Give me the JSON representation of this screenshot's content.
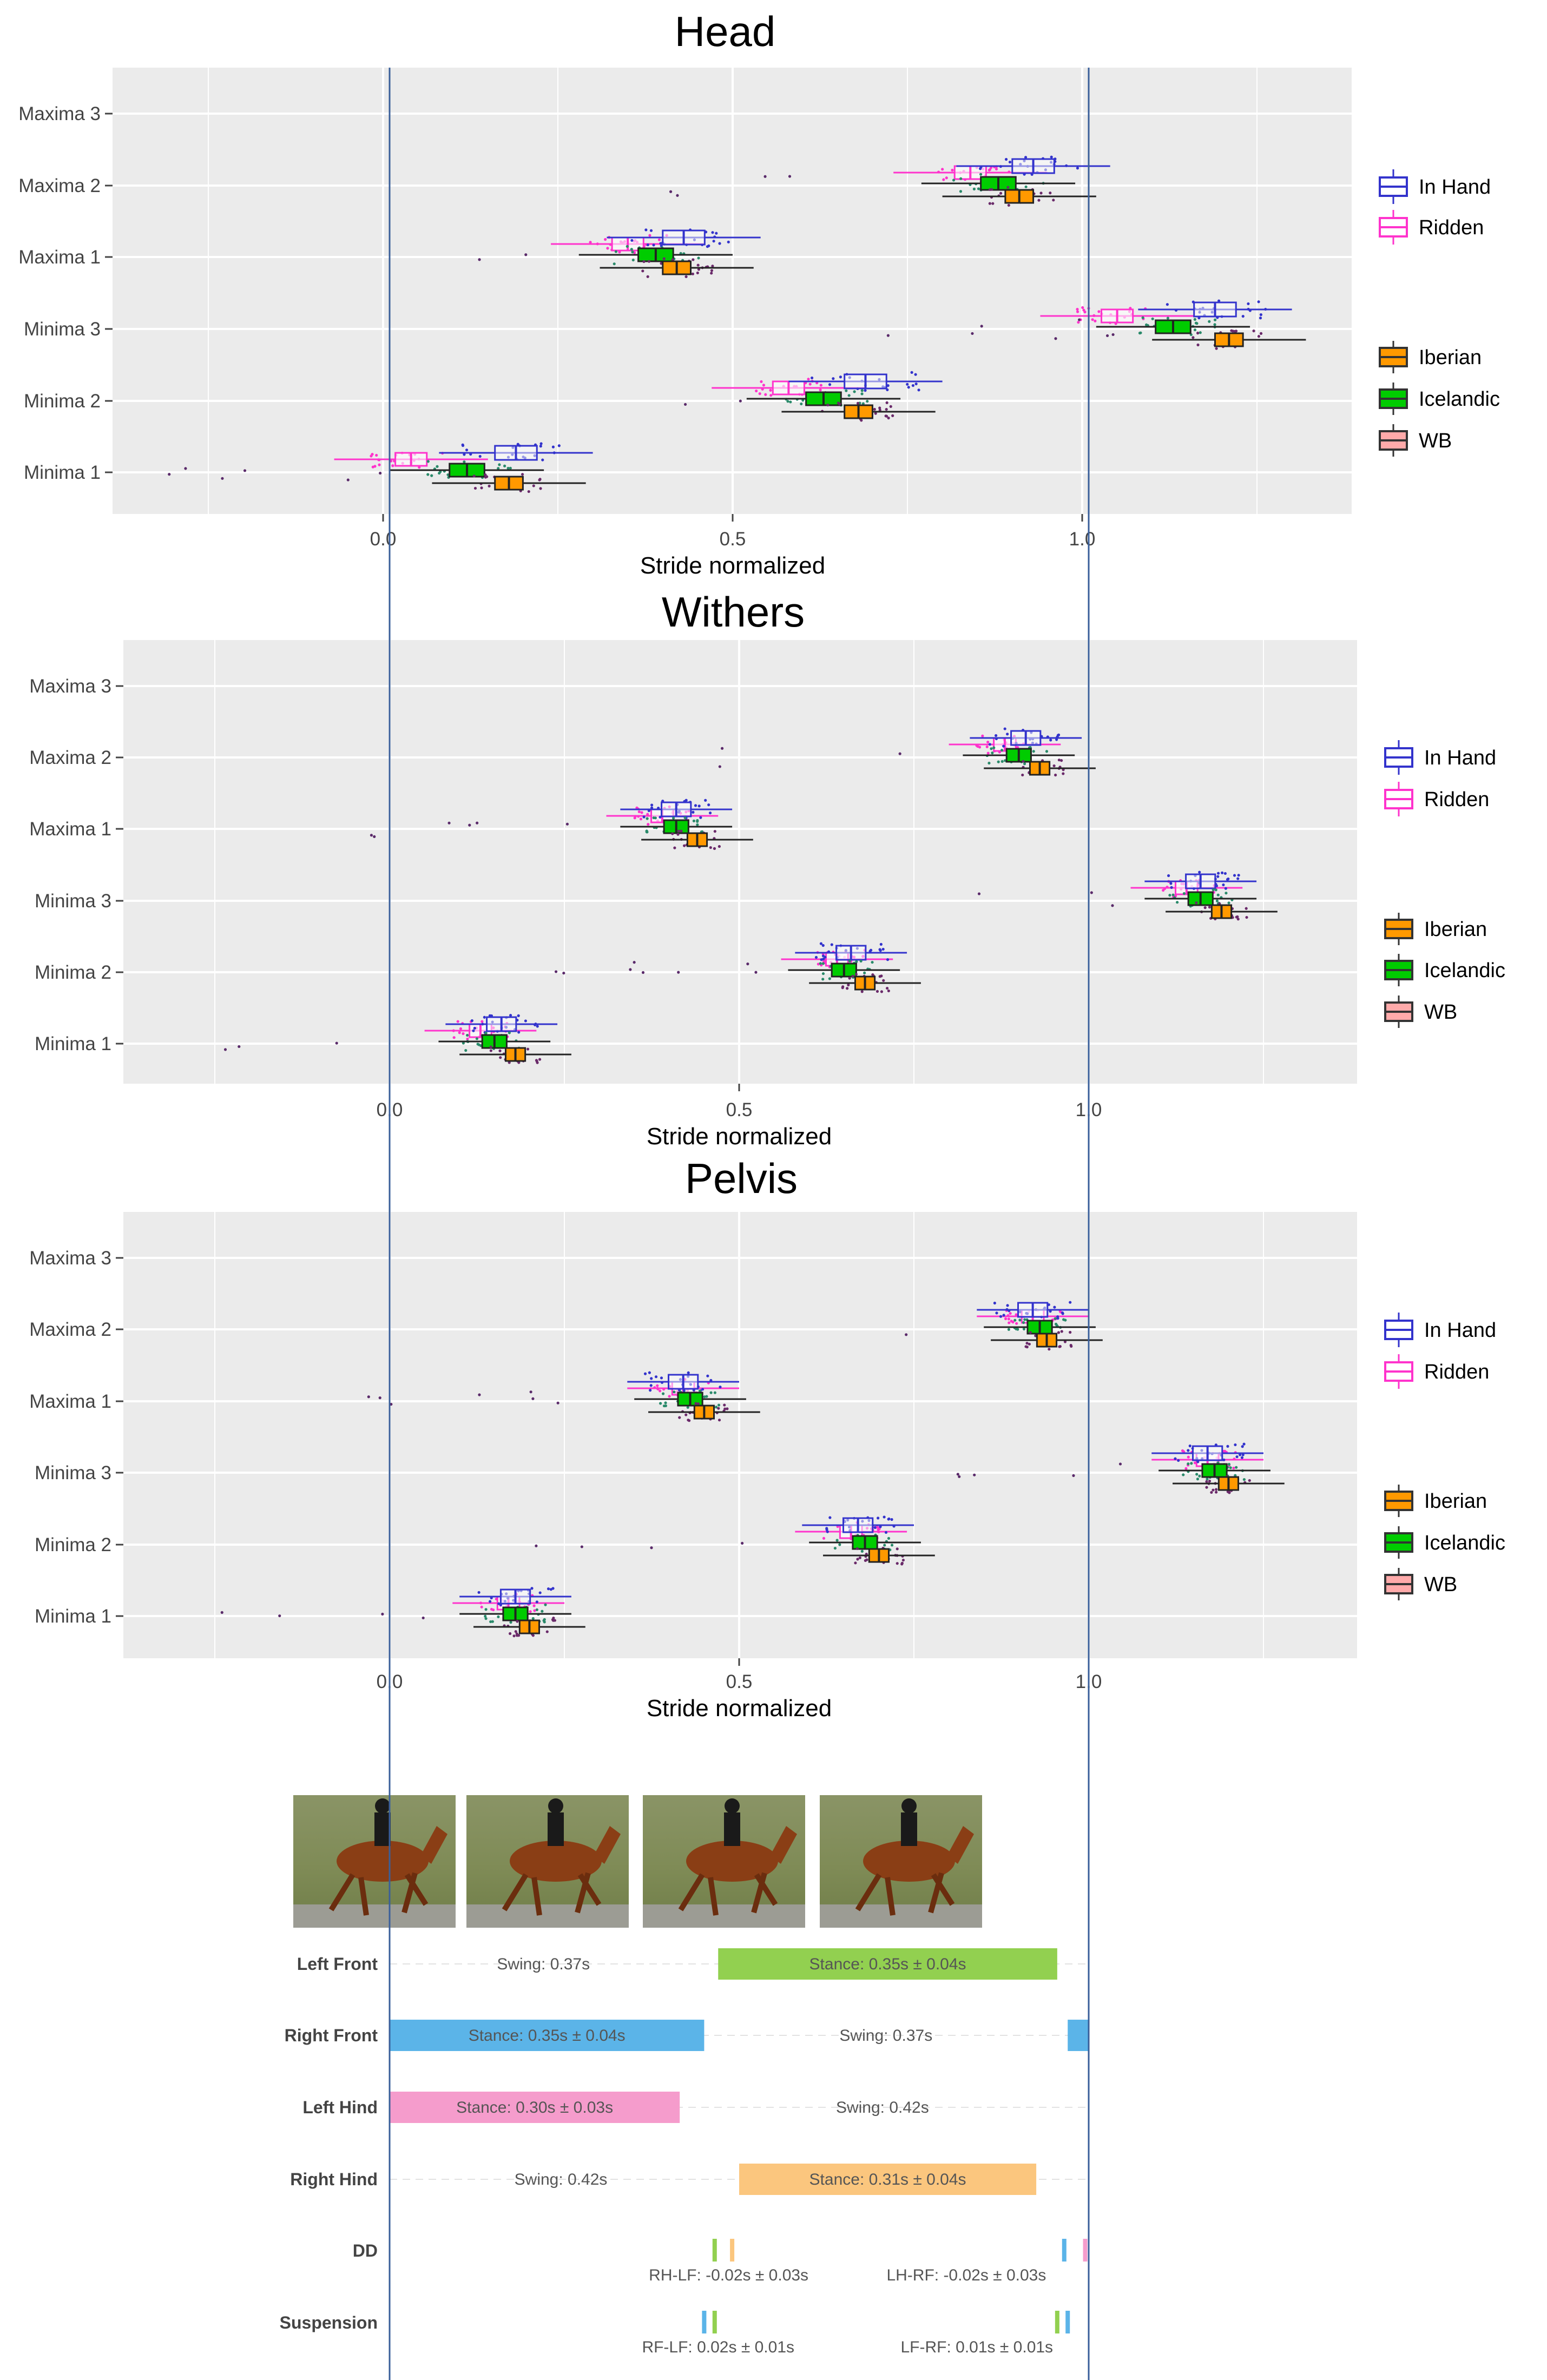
{
  "chart_data": [
    {
      "type": "boxplot",
      "title": "Head",
      "xlabel": "Stride normalized",
      "xticks": [
        "0.0",
        "0.5",
        "1.0"
      ],
      "xlim": [
        -0.38,
        1.38
      ],
      "categories": [
        "Maxima 3",
        "Maxima 2",
        "Maxima 1",
        "Minima 3",
        "Minima 2",
        "Minima 1"
      ],
      "legend_condition": [
        "In Hand",
        "Ridden"
      ],
      "legend_breed": [
        "Iberian",
        "Icelandic",
        "WB"
      ],
      "series": [
        {
          "name": "Ridden",
          "median": {
            "Maxima 2": 0.84,
            "Maxima 1": 0.35,
            "Minima 3": 1.05,
            "Minima 2": 0.58,
            "Minima 1": 0.04
          }
        },
        {
          "name": "In Hand",
          "median": {
            "Maxima 2": 0.93,
            "Maxima 1": 0.43,
            "Minima 3": 1.19,
            "Minima 2": 0.69,
            "Minima 1": 0.19
          }
        },
        {
          "name": "Icelandic",
          "median": {
            "Maxima 2": 0.88,
            "Maxima 1": 0.39,
            "Minima 3": 1.13,
            "Minima 2": 0.63,
            "Minima 1": 0.12
          }
        },
        {
          "name": "Iberian",
          "median": {
            "Maxima 2": 0.91,
            "Maxima 1": 0.42,
            "Minima 3": 1.21,
            "Minima 2": 0.68,
            "Minima 1": 0.18
          }
        }
      ]
    },
    {
      "type": "boxplot",
      "title": "Withers",
      "xlabel": "Stride normalized",
      "xticks": [
        "0.0",
        "0.5",
        "1.0"
      ],
      "xlim": [
        -0.38,
        1.38
      ],
      "categories": [
        "Maxima 3",
        "Maxima 2",
        "Maxima 1",
        "Minima 3",
        "Minima 2",
        "Minima 1"
      ],
      "legend_condition": [
        "In Hand",
        "Ridden"
      ],
      "legend_breed": [
        "Iberian",
        "Icelandic",
        "WB"
      ],
      "series": [
        {
          "name": "Ridden",
          "median": {
            "Maxima 2": 0.88,
            "Maxima 1": 0.39,
            "Minima 3": 1.14,
            "Minima 2": 0.64,
            "Minima 1": 0.13
          }
        },
        {
          "name": "In Hand",
          "median": {
            "Maxima 2": 0.91,
            "Maxima 1": 0.41,
            "Minima 3": 1.16,
            "Minima 2": 0.66,
            "Minima 1": 0.16
          }
        },
        {
          "name": "Icelandic",
          "median": {
            "Maxima 2": 0.9,
            "Maxima 1": 0.41,
            "Minima 3": 1.16,
            "Minima 2": 0.65,
            "Minima 1": 0.15
          }
        },
        {
          "name": "Iberian",
          "median": {
            "Maxima 2": 0.93,
            "Maxima 1": 0.44,
            "Minima 3": 1.19,
            "Minima 2": 0.68,
            "Minima 1": 0.18
          }
        }
      ]
    },
    {
      "type": "boxplot",
      "title": "Pelvis",
      "xlabel": "Stride normalized",
      "xticks": [
        "0.0",
        "0.5",
        "1.0"
      ],
      "xlim": [
        -0.38,
        1.38
      ],
      "categories": [
        "Maxima 3",
        "Maxima 2",
        "Maxima 1",
        "Minima 3",
        "Minima 2",
        "Minima 1"
      ],
      "legend_condition": [
        "In Hand",
        "Ridden"
      ],
      "legend_breed": [
        "Iberian",
        "Icelandic",
        "WB"
      ],
      "series": [
        {
          "name": "Ridden",
          "median": {
            "Maxima 2": 0.92,
            "Maxima 1": 0.42,
            "Minima 3": 1.17,
            "Minima 2": 0.66,
            "Minima 1": 0.17
          }
        },
        {
          "name": "In Hand",
          "median": {
            "Maxima 2": 0.92,
            "Maxima 1": 0.42,
            "Minima 3": 1.17,
            "Minima 2": 0.67,
            "Minima 1": 0.18
          }
        },
        {
          "name": "Icelandic",
          "median": {
            "Maxima 2": 0.93,
            "Maxima 1": 0.43,
            "Minima 3": 1.18,
            "Minima 2": 0.68,
            "Minima 1": 0.18
          }
        },
        {
          "name": "Iberian",
          "median": {
            "Maxima 2": 0.94,
            "Maxima 1": 0.45,
            "Minima 3": 1.2,
            "Minima 2": 0.7,
            "Minima 1": 0.2
          }
        }
      ]
    },
    {
      "type": "gait_diagram",
      "x_units": "stride fraction",
      "rows": [
        {
          "label": "Left Front",
          "bars": [
            {
              "start": 0.47,
              "end": 0.955,
              "color": "#92d050",
              "text": "Stance: 0.35s ± 0.04s"
            }
          ],
          "swing_text": "Swing: 0.37s",
          "swing_center": 0.22
        },
        {
          "label": "Right Front",
          "bars": [
            {
              "start": 0.0,
              "end": 0.45,
              "color": "#5bb4e8",
              "text": "Stance: 0.35s ± 0.04s"
            },
            {
              "start": 0.97,
              "end": 1.0,
              "color": "#5bb4e8",
              "text": ""
            }
          ],
          "swing_text": "Swing: 0.37s",
          "swing_center": 0.71
        },
        {
          "label": "Left Hind",
          "bars": [
            {
              "start": 0.0,
              "end": 0.415,
              "color": "#f59ccc",
              "text": "Stance: 0.30s ± 0.03s"
            }
          ],
          "swing_text": "Swing: 0.42s",
          "swing_center": 0.705
        },
        {
          "label": "Right Hind",
          "bars": [
            {
              "start": 0.5,
              "end": 0.925,
              "color": "#fbc67e",
              "text": "Stance: 0.31s ± 0.04s"
            }
          ],
          "swing_text": "Swing: 0.42s",
          "swing_center": 0.245
        },
        {
          "label": "DD",
          "ticks": [
            {
              "x": 0.465,
              "color": "#92d050"
            },
            {
              "x": 0.49,
              "color": "#fbc67e"
            },
            {
              "x": 0.965,
              "color": "#5bb4e8"
            },
            {
              "x": 0.995,
              "color": "#f59ccc"
            }
          ],
          "notes": [
            {
              "text": "RH-LF: -0.02s ± 0.03s",
              "center": 0.485
            },
            {
              "text": "LH-RF: -0.02s ± 0.03s",
              "center": 0.825
            }
          ]
        },
        {
          "label": "Suspension",
          "ticks": [
            {
              "x": 0.45,
              "color": "#5bb4e8"
            },
            {
              "x": 0.465,
              "color": "#92d050"
            },
            {
              "x": 0.955,
              "color": "#92d050"
            },
            {
              "x": 0.97,
              "color": "#5bb4e8"
            }
          ],
          "notes": [
            {
              "text": "RF-LF: 0.02s ± 0.01s",
              "center": 0.47
            },
            {
              "text": "LF-RF: 0.01s ± 0.01s",
              "center": 0.84
            }
          ]
        }
      ]
    }
  ],
  "colors": {
    "in_hand": "#3333cc",
    "ridden": "#ff33cc",
    "iberian": "#ff9900",
    "icelandic": "#00cc00",
    "wb": "#ffaaaa",
    "panel_bg": "#ebebeb",
    "grid": "#ffffff",
    "ref_line": "#3a5f9a"
  },
  "photos_count": 4
}
